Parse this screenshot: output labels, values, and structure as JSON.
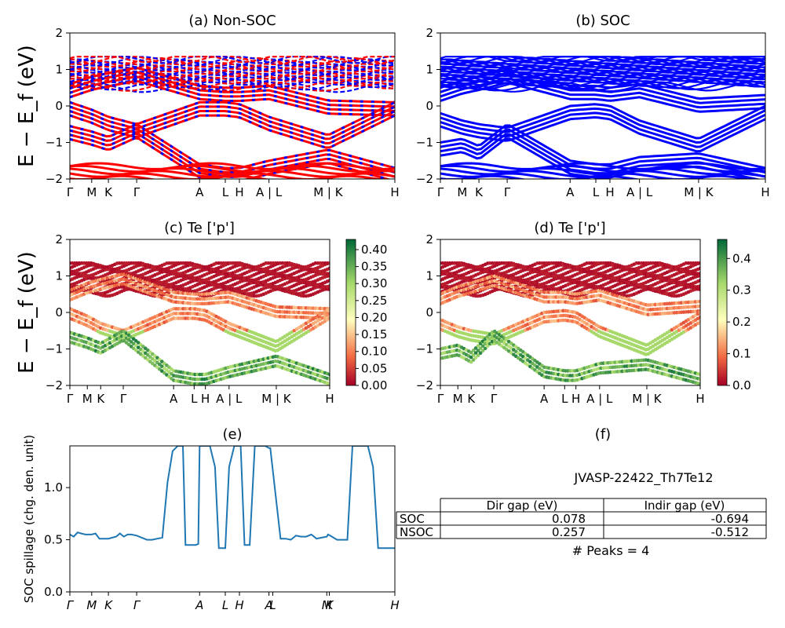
{
  "figure": {
    "colors": {
      "nonsoc_red": "#ff0000",
      "soc_blue": "#0000ff",
      "spillage_line": "#1f77b4",
      "cmap": "RdYlGn"
    }
  },
  "chart_data": [
    {
      "id": "a",
      "type": "line",
      "title": "(a) Non-SOC",
      "ylabel": "E − E_f (eV)",
      "ylim": [
        -2,
        2
      ],
      "yticks": [
        "2",
        "1",
        "0",
        "−1",
        "−2"
      ],
      "kpath_labels": [
        "Γ",
        "M",
        "K",
        "Γ",
        "A",
        "L",
        "H",
        "A | L",
        "M | K",
        "H"
      ],
      "kpath_positions": [
        0,
        0.085,
        0.15,
        0.26,
        0.505,
        0.605,
        0.66,
        0.775,
        1.005,
        1.265
      ],
      "series": [
        {
          "values": [
            0.6,
            0.8,
            0.9,
            1.05,
            0.55,
            0.5,
            0.5,
            0.55,
            0.15,
            0.1
          ]
        },
        {
          "values": [
            0.1,
            -0.1,
            -0.3,
            -0.5,
            0.1,
            0.1,
            0.05,
            -0.3,
            -0.8,
            0.1
          ]
        },
        {
          "values": [
            -0.55,
            -0.7,
            -0.85,
            -0.5,
            -1.6,
            -1.7,
            -1.7,
            -1.5,
            -1.2,
            -1.7
          ]
        }
      ]
    },
    {
      "id": "b",
      "type": "line",
      "title": "(b) SOC",
      "ylim": [
        -2,
        2
      ],
      "yticks": [
        "2",
        "1",
        "0",
        "−1",
        "−2"
      ],
      "kpath_labels": [
        "Γ",
        "M",
        "K",
        "Γ",
        "A",
        "L",
        "H",
        "A | L",
        "M | K",
        "H"
      ],
      "kpath_positions": [
        0,
        0.085,
        0.15,
        0.26,
        0.505,
        0.605,
        0.66,
        0.775,
        1.005,
        1.265
      ],
      "series": [
        {
          "values": [
            0.5,
            0.7,
            0.8,
            1.0,
            0.55,
            0.55,
            0.5,
            0.6,
            0.2,
            0.3
          ]
        },
        {
          "values": [
            -0.2,
            -0.4,
            -0.5,
            -0.6,
            0.0,
            0.05,
            0.0,
            -0.4,
            -0.9,
            0.0
          ]
        },
        {
          "values": [
            -1.0,
            -0.9,
            -1.1,
            -0.5,
            -1.5,
            -1.6,
            -1.6,
            -1.4,
            -1.3,
            -1.7
          ]
        }
      ]
    },
    {
      "id": "c",
      "type": "scatter",
      "title": "(c)  Te ['p']",
      "ylabel": "E − E_f (eV)",
      "ylim": [
        -2,
        2
      ],
      "yticks": [
        "2",
        "1",
        "0",
        "−1",
        "−2"
      ],
      "kpath_labels": [
        "Γ",
        "M",
        "K",
        "Γ",
        "A",
        "L",
        "H",
        "A | L",
        "M | K",
        "H"
      ],
      "kpath_positions": [
        0,
        0.085,
        0.15,
        0.26,
        0.505,
        0.605,
        0.66,
        0.775,
        1.005,
        1.265
      ],
      "colorbar": {
        "range": [
          0.0,
          0.43
        ],
        "ticks": [
          "0.40",
          "0.35",
          "0.30",
          "0.25",
          "0.20",
          "0.15",
          "0.10",
          "0.05",
          "0.00"
        ],
        "tick_values": [
          0.4,
          0.35,
          0.3,
          0.25,
          0.2,
          0.15,
          0.1,
          0.05,
          0.0
        ]
      }
    },
    {
      "id": "d",
      "type": "scatter",
      "title": "(d) Te ['p']",
      "ylim": [
        -2,
        2
      ],
      "yticks": [
        "2",
        "1",
        "0",
        "−1",
        "−2"
      ],
      "kpath_labels": [
        "Γ",
        "M",
        "K",
        "Γ",
        "A",
        "L",
        "H",
        "A | L",
        "M | K",
        "H"
      ],
      "kpath_positions": [
        0,
        0.085,
        0.15,
        0.26,
        0.505,
        0.605,
        0.66,
        0.775,
        1.005,
        1.265
      ],
      "colorbar": {
        "range": [
          0.0,
          0.46
        ],
        "ticks": [
          "0.4",
          "0.3",
          "0.2",
          "0.1",
          "0.0"
        ],
        "tick_values": [
          0.4,
          0.3,
          0.2,
          0.1,
          0.0
        ]
      }
    },
    {
      "id": "e",
      "type": "line",
      "title": "(e)",
      "ylabel": "SOC spillage (chg. den. unit)",
      "ylim": [
        0,
        1.4
      ],
      "yticks": [
        "1.0",
        "0.5",
        "0.0"
      ],
      "ytick_values": [
        1.0,
        0.5,
        0.0
      ],
      "kpath_labels": [
        "Γ",
        "M",
        "K",
        "Γ",
        "A",
        "L",
        "H",
        "A",
        "L",
        "M",
        "K",
        "H"
      ],
      "kpath_positions": [
        0,
        0.085,
        0.15,
        0.26,
        0.505,
        0.605,
        0.66,
        0.775,
        0.79,
        1.0,
        1.01,
        1.265
      ],
      "x": [
        0,
        0.015,
        0.03,
        0.045,
        0.06,
        0.075,
        0.085,
        0.1,
        0.115,
        0.13,
        0.14,
        0.15,
        0.165,
        0.18,
        0.195,
        0.21,
        0.225,
        0.24,
        0.26,
        0.28,
        0.3,
        0.32,
        0.34,
        0.36,
        0.38,
        0.4,
        0.42,
        0.43,
        0.44,
        0.45,
        0.47,
        0.49,
        0.5,
        0.505,
        0.52,
        0.545,
        0.565,
        0.58,
        0.605,
        0.62,
        0.64,
        0.66,
        0.665,
        0.68,
        0.69,
        0.7,
        0.72,
        0.74,
        0.76,
        0.775,
        0.78,
        0.82,
        0.84,
        0.86,
        0.88,
        0.9,
        0.92,
        0.94,
        0.96,
        0.98,
        1.0,
        1.005,
        1.02,
        1.04,
        1.06,
        1.08,
        1.1,
        1.12,
        1.14,
        1.16,
        1.18,
        1.2,
        1.22,
        1.24,
        1.255,
        1.265
      ],
      "values": [
        0.55,
        0.53,
        0.57,
        0.56,
        0.55,
        0.55,
        0.55,
        0.56,
        0.51,
        0.51,
        0.51,
        0.51,
        0.52,
        0.53,
        0.56,
        0.53,
        0.55,
        0.55,
        0.54,
        0.52,
        0.5,
        0.5,
        0.51,
        0.52,
        1.05,
        1.35,
        1.4,
        1.4,
        1.4,
        0.45,
        0.45,
        0.45,
        0.46,
        1.4,
        1.4,
        1.4,
        1.2,
        0.42,
        0.42,
        1.2,
        1.4,
        1.4,
        1.4,
        0.45,
        0.45,
        0.45,
        1.4,
        1.4,
        1.4,
        1.38,
        1.38,
        0.51,
        0.51,
        0.5,
        0.54,
        0.53,
        0.53,
        0.55,
        0.51,
        0.52,
        0.53,
        0.55,
        0.53,
        0.5,
        0.5,
        0.5,
        1.4,
        1.4,
        1.4,
        1.4,
        1.2,
        0.42,
        0.42,
        0.42,
        0.42,
        0.42
      ]
    },
    {
      "id": "f",
      "type": "table",
      "title": "(f)",
      "subtitle": "JVASP-22422_Th7Te12",
      "columns": [
        "Dir gap (eV)",
        "Indir gap (eV)"
      ],
      "rows": [
        {
          "label": "SOC",
          "cells": [
            "0.078",
            "-0.694"
          ]
        },
        {
          "label": "NSOC",
          "cells": [
            "0.257",
            "-0.512"
          ]
        }
      ],
      "footer": "# Peaks = 4"
    }
  ]
}
